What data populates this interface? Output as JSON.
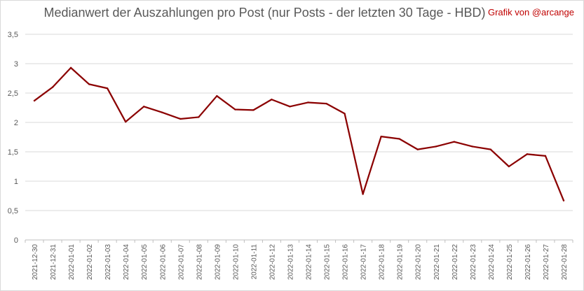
{
  "chart_data": {
    "type": "line",
    "title": "Medianwert der Auszahlungen pro Post (nur Posts - der letzten 30 Tage - HBD)",
    "annotation": "Grafik von @arcange",
    "xlabel": "",
    "ylabel": "",
    "ylim": [
      0,
      3.5
    ],
    "yticks": [
      "0",
      "0,5",
      "1",
      "1,5",
      "2",
      "2,5",
      "3",
      "3,5"
    ],
    "grid": true,
    "legend": "none",
    "categories": [
      "2021-12-30",
      "2021-12-31",
      "2022-01-01",
      "2022-01-02",
      "2022-01-03",
      "2022-01-04",
      "2022-01-05",
      "2022-01-06",
      "2022-01-07",
      "2022-01-08",
      "2022-01-09",
      "2022-01-10",
      "2022-01-11",
      "2022-01-12",
      "2022-01-13",
      "2022-01-14",
      "2022-01-15",
      "2022-01-16",
      "2022-01-17",
      "2022-01-18",
      "2022-01-19",
      "2022-01-20",
      "2022-01-21",
      "2022-01-22",
      "2022-01-23",
      "2022-01-24",
      "2022-01-25",
      "2022-01-26",
      "2022-01-27",
      "2022-01-28"
    ],
    "series": [
      {
        "color": "#8b0000",
        "values": [
          2.37,
          2.6,
          2.93,
          2.65,
          2.58,
          2.01,
          2.27,
          2.17,
          2.06,
          2.09,
          2.45,
          2.22,
          2.21,
          2.39,
          2.27,
          2.34,
          2.32,
          2.15,
          0.78,
          1.76,
          1.72,
          1.54,
          1.59,
          1.67,
          1.59,
          1.54,
          1.25,
          1.46,
          1.43,
          0.67
        ]
      }
    ]
  }
}
